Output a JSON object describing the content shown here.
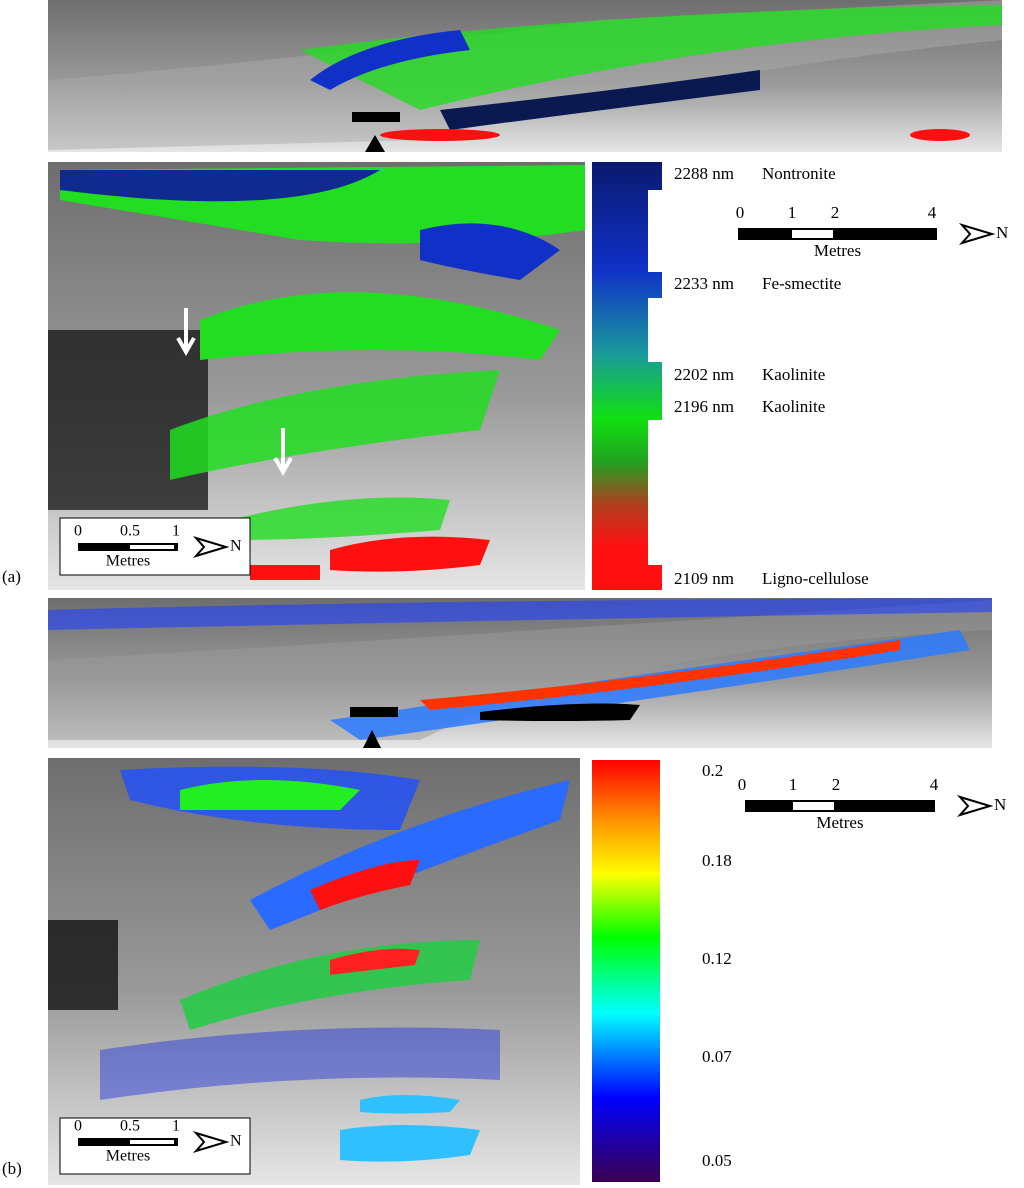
{
  "panels": [
    {
      "label": "(a)",
      "legend": {
        "entries": [
          {
            "wavelength": "2288 nm",
            "mineral": "Nontronite"
          },
          {
            "wavelength": "2233 nm",
            "mineral": "Fe-smectite"
          },
          {
            "wavelength": "2202 nm",
            "mineral": "Kaolinite"
          },
          {
            "wavelength": "2196 nm",
            "mineral": "Kaolinite"
          },
          {
            "wavelength": "2109 nm",
            "mineral": "Ligno-cellulose"
          }
        ]
      },
      "scale_bar": {
        "ticks": [
          "0",
          "1",
          "2",
          "4"
        ],
        "unit": "Metres",
        "north": "N"
      },
      "inset_scale_bar": {
        "ticks": [
          "0",
          "0.5",
          "1"
        ],
        "unit": "Metres",
        "north": "N"
      }
    },
    {
      "label": "(b)",
      "colorbar": {
        "ticks": [
          "0.2",
          "0.18",
          "0.12",
          "0.07",
          "0.05"
        ]
      },
      "scale_bar": {
        "ticks": [
          "0",
          "1",
          "2",
          "4"
        ],
        "unit": "Metres",
        "north": "N"
      },
      "inset_scale_bar": {
        "ticks": [
          "0",
          "0.5",
          "1"
        ],
        "unit": "Metres",
        "north": "N"
      }
    }
  ]
}
